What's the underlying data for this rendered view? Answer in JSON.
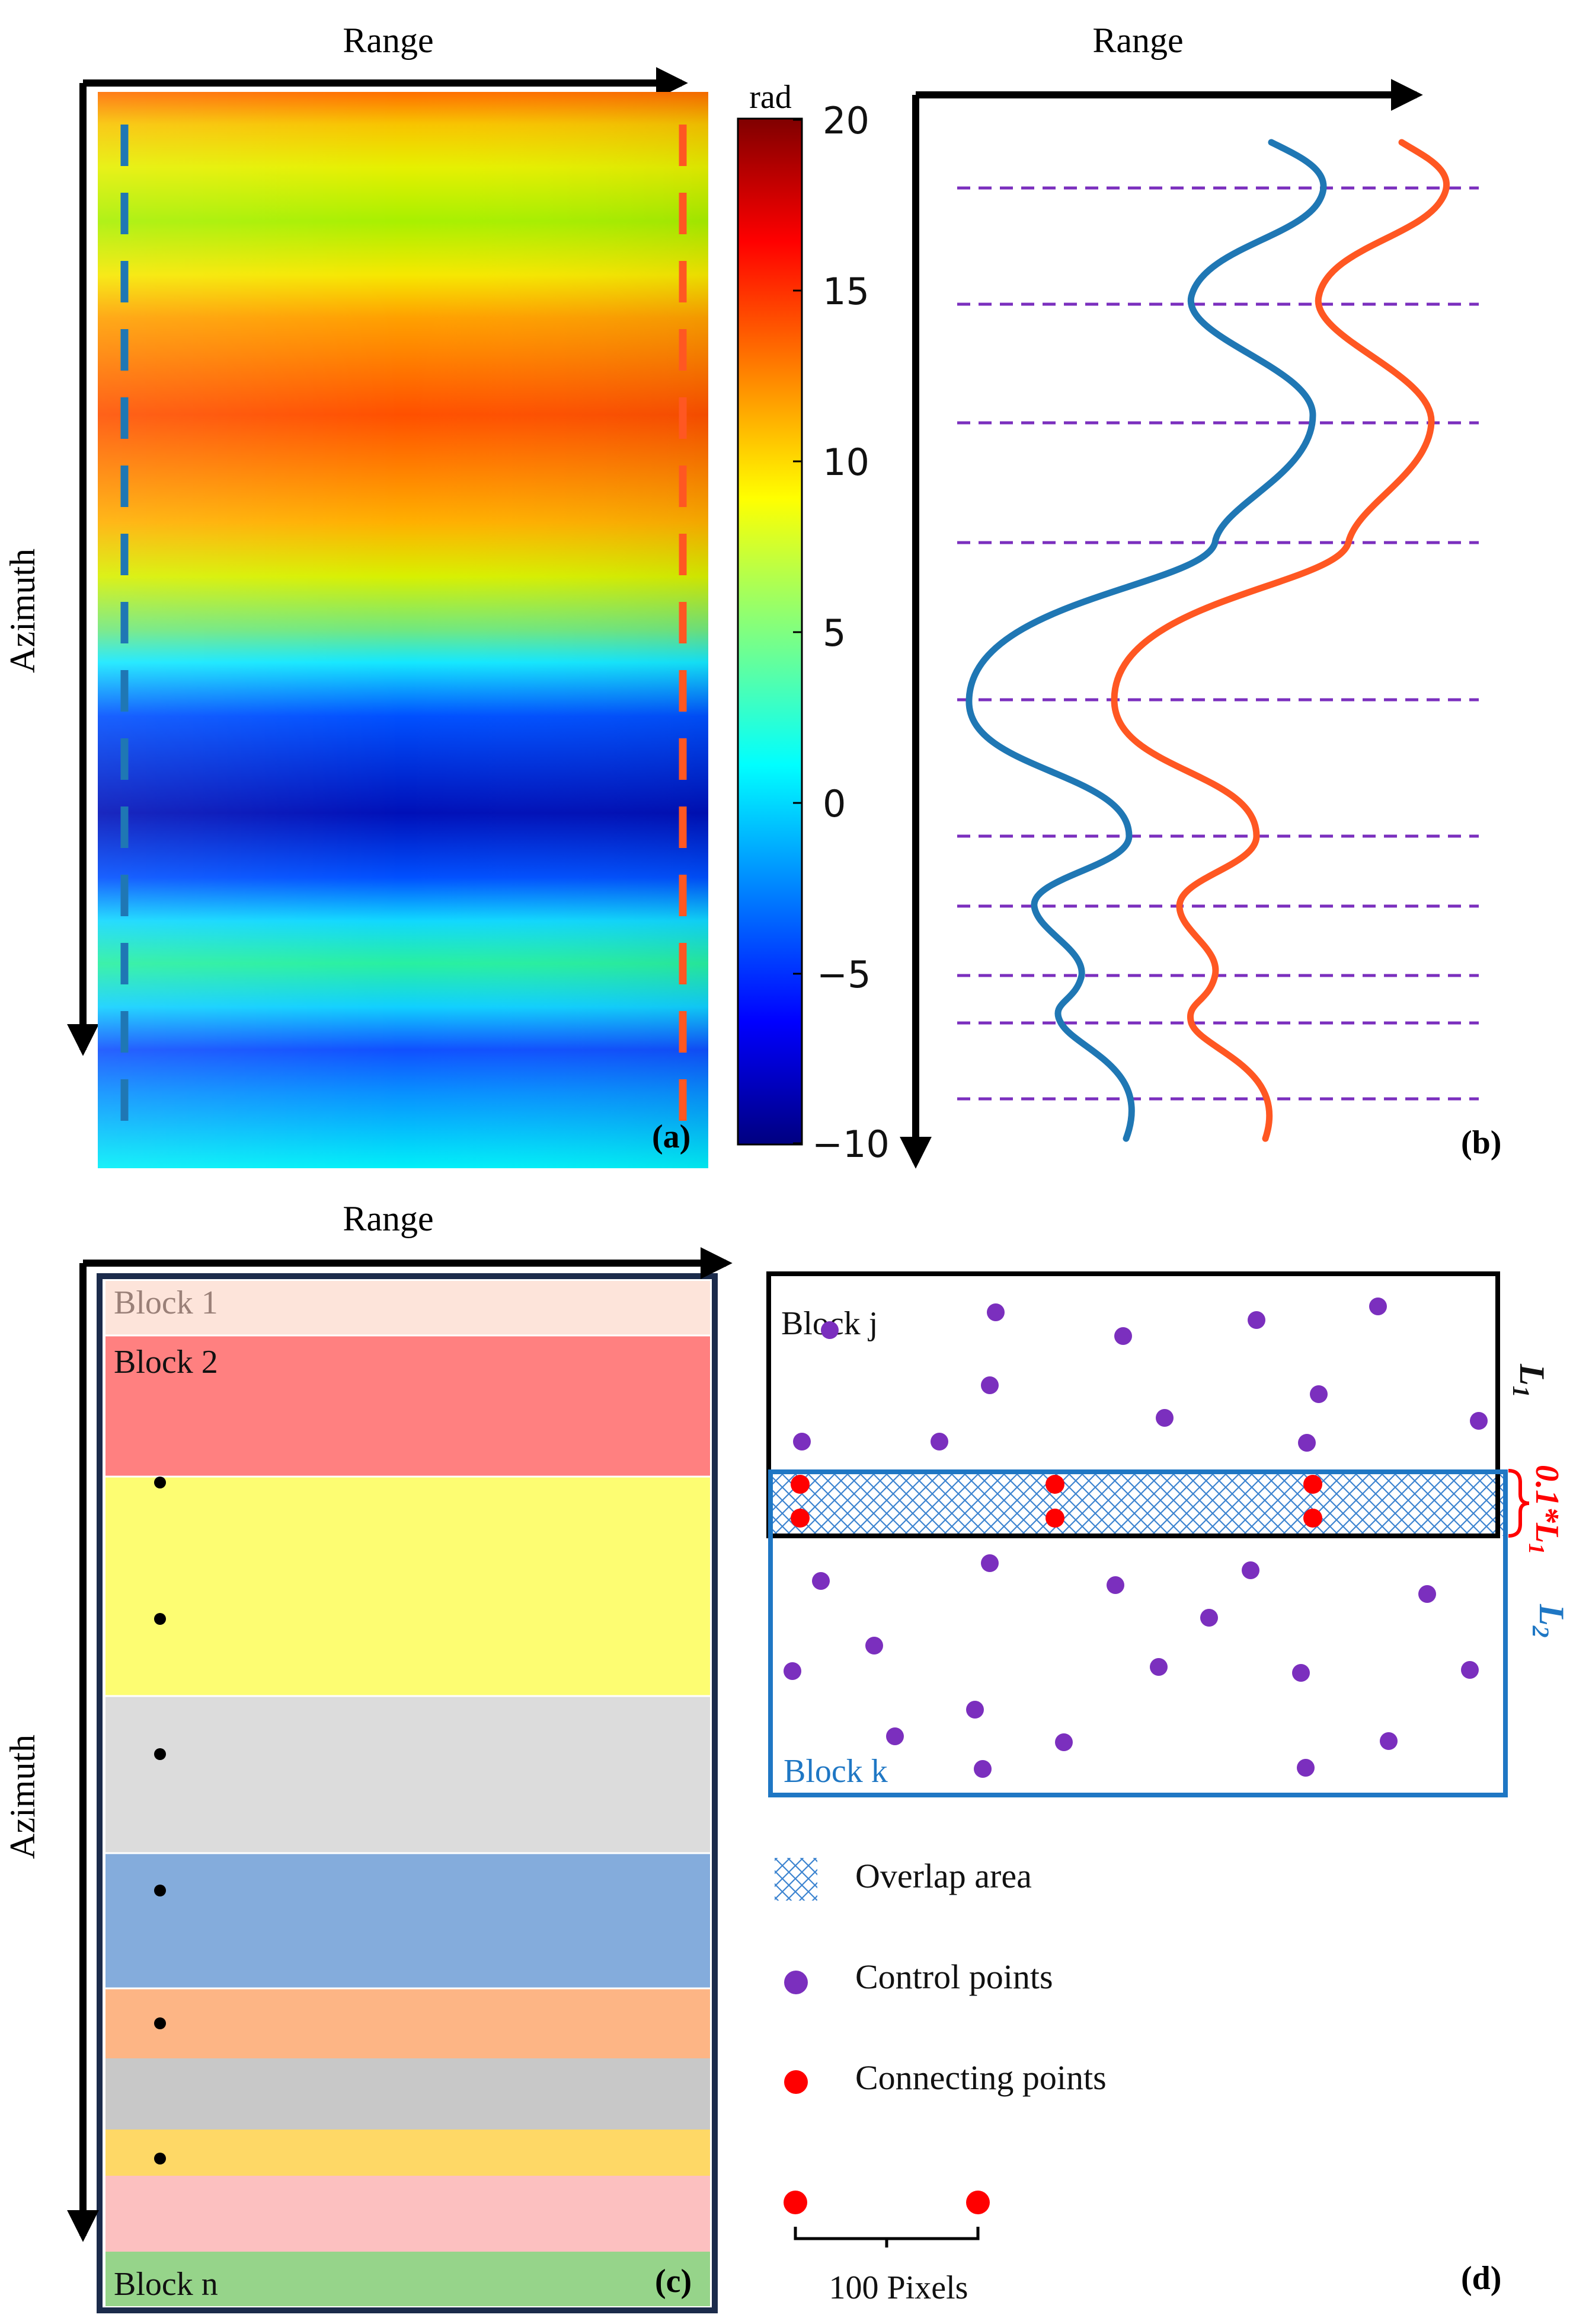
{
  "panel_a": {
    "axis_top_label": "Range",
    "axis_left_label": "Azimuth",
    "panel_label": "(a)",
    "colorbar": {
      "unit": "rad",
      "ticks": [
        "20",
        "15",
        "10",
        "5",
        "0",
        "−10"
      ],
      "minus5": "−5",
      "range": [
        -10,
        20
      ],
      "colormap": "jet"
    },
    "left_line_color": "#1f77b4",
    "right_line_color": "#ff5722"
  },
  "panel_b": {
    "axis_top_label": "Range",
    "panel_label": "(b)",
    "curve1_color": "#1f77b4",
    "curve2_color": "#ff5722",
    "dashed_line_color": "#7b2fbe",
    "dashed_line_count": 10
  },
  "panel_c": {
    "axis_top_label": "Range",
    "axis_left_label": "Azimuth",
    "panel_label": "(c)",
    "blocks": [
      {
        "label": "Block 1",
        "color": "#fde4da"
      },
      {
        "label": "Block 2",
        "color": "#ff8080"
      },
      {
        "label": "",
        "color": "#fdfd72"
      },
      {
        "label": "",
        "color": "#dcdcdc"
      },
      {
        "label": "",
        "color": "#84acdc"
      },
      {
        "label": "",
        "color": "#fdb585"
      },
      {
        "label": "",
        "color": "#c8c8c8"
      },
      {
        "label": "",
        "color": "#fed866"
      },
      {
        "label": "",
        "color": "#fcc0c0"
      },
      {
        "label": "Block n",
        "color": "#96d48a"
      }
    ],
    "frame_color": "#1b2b4b"
  },
  "panel_d": {
    "panel_label": "(d)",
    "block_j_label": "Block j",
    "block_k_label": "Block k",
    "l1_label": "L",
    "l1_sub": "1",
    "overlap_label": "0.1*L",
    "overlap_sub": "1",
    "l2_label": "L",
    "l2_sub": "2",
    "block_j_color": "#000000",
    "block_k_color": "#1f77c4",
    "control_point_color": "#7b2fbe",
    "connecting_point_color": "#ff0000"
  },
  "legend": {
    "items": [
      {
        "label": "Overlap area"
      },
      {
        "label": "Control points"
      },
      {
        "label": "Connecting points"
      }
    ],
    "scale_label": "100 Pixels"
  }
}
